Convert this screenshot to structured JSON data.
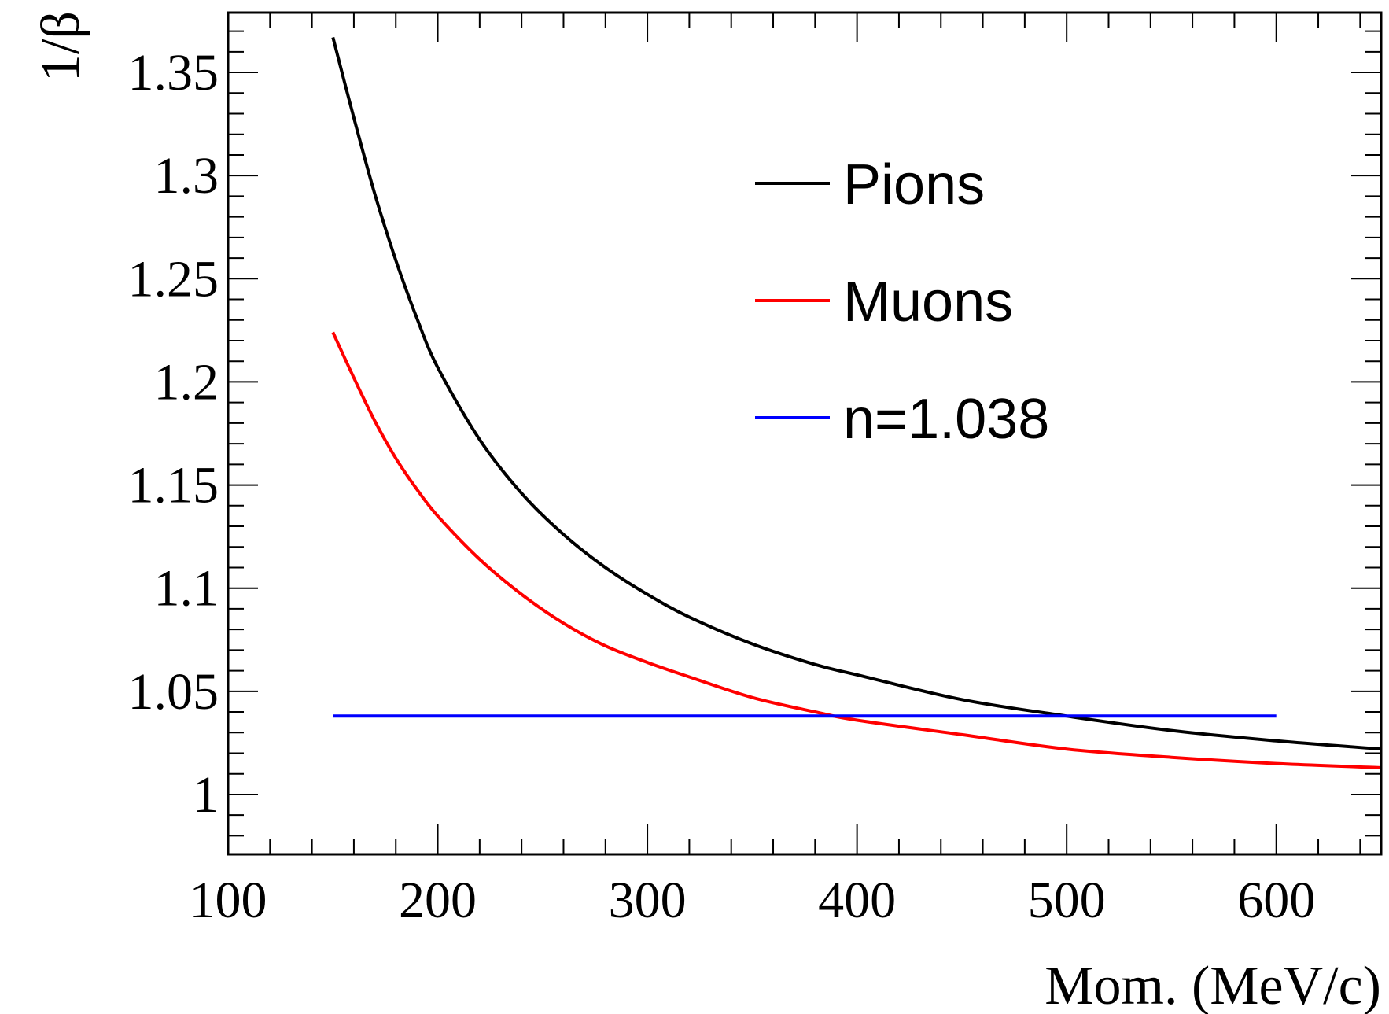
{
  "chart_data": {
    "type": "line",
    "xlabel": "Mom. (MeV/c)",
    "ylabel": "1/β",
    "xlim": [
      100,
      650
    ],
    "ylim": [
      0.971,
      1.379
    ],
    "x_ticks": [
      100,
      200,
      300,
      400,
      500,
      600
    ],
    "x_tick_labels": [
      "100",
      "200",
      "300",
      "400",
      "500",
      "600"
    ],
    "y_ticks": [
      1.0,
      1.05,
      1.1,
      1.15,
      1.2,
      1.25,
      1.3,
      1.35
    ],
    "y_tick_labels": [
      "1",
      "1.05",
      "1.1",
      "1.15",
      "1.2",
      "1.25",
      "1.3",
      "1.35"
    ],
    "grid": false,
    "legend_position": "top-center",
    "series": [
      {
        "name": "Pions",
        "color": "#000000",
        "x": [
          150,
          160,
          170,
          180,
          190,
          200,
          220,
          240,
          260,
          280,
          300,
          320,
          350,
          380,
          400,
          450,
          500,
          550,
          600,
          650
        ],
        "y": [
          1.367,
          1.328,
          1.291,
          1.259,
          1.231,
          1.207,
          1.172,
          1.146,
          1.126,
          1.11,
          1.097,
          1.086,
          1.073,
          1.063,
          1.058,
          1.046,
          1.038,
          1.031,
          1.026,
          1.022
        ]
      },
      {
        "name": "Muons",
        "color": "#ff0000",
        "x": [
          150,
          160,
          170,
          180,
          190,
          200,
          220,
          240,
          260,
          280,
          300,
          320,
          350,
          380,
          400,
          450,
          500,
          550,
          600,
          650
        ],
        "y": [
          1.224,
          1.202,
          1.181,
          1.163,
          1.148,
          1.135,
          1.114,
          1.097,
          1.083,
          1.072,
          1.064,
          1.057,
          1.047,
          1.04,
          1.036,
          1.029,
          1.022,
          1.018,
          1.015,
          1.013
        ]
      },
      {
        "name": "n=1.038",
        "color": "#0000ff",
        "x": [
          150,
          600
        ],
        "y": [
          1.038,
          1.038
        ]
      }
    ]
  }
}
